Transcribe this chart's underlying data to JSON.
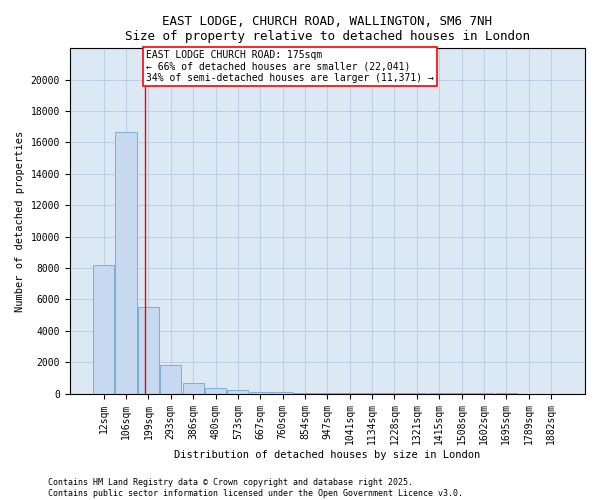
{
  "title_line1": "EAST LODGE, CHURCH ROAD, WALLINGTON, SM6 7NH",
  "title_line2": "Size of property relative to detached houses in London",
  "xlabel": "Distribution of detached houses by size in London",
  "ylabel": "Number of detached properties",
  "categories": [
    "12sqm",
    "106sqm",
    "199sqm",
    "293sqm",
    "386sqm",
    "480sqm",
    "573sqm",
    "667sqm",
    "760sqm",
    "854sqm",
    "947sqm",
    "1041sqm",
    "1134sqm",
    "1228sqm",
    "1321sqm",
    "1415sqm",
    "1508sqm",
    "1602sqm",
    "1695sqm",
    "1789sqm",
    "1882sqm"
  ],
  "values": [
    8200,
    16700,
    5500,
    1850,
    650,
    350,
    200,
    100,
    70,
    50,
    40,
    30,
    25,
    20,
    15,
    12,
    10,
    8,
    7,
    6,
    5
  ],
  "bar_color": "#c6d9f0",
  "bar_edge_color": "#7bafd4",
  "red_line_x": 1.85,
  "annotation_text": "EAST LODGE CHURCH ROAD: 175sqm\n← 66% of detached houses are smaller (22,041)\n34% of semi-detached houses are larger (11,371) →",
  "annotation_box_color": "white",
  "annotation_box_edge_color": "red",
  "ylim": [
    0,
    22000
  ],
  "yticks": [
    0,
    2000,
    4000,
    6000,
    8000,
    10000,
    12000,
    14000,
    16000,
    18000,
    20000
  ],
  "grid_color": "#b0c4de",
  "background_color": "white",
  "ax_background": "#dce9f5",
  "footnote_line1": "Contains HM Land Registry data © Crown copyright and database right 2025.",
  "footnote_line2": "Contains public sector information licensed under the Open Government Licence v3.0.",
  "title_fontsize": 9,
  "axis_label_fontsize": 7.5,
  "tick_fontsize": 7,
  "annotation_fontsize": 7,
  "footnote_fontsize": 6
}
